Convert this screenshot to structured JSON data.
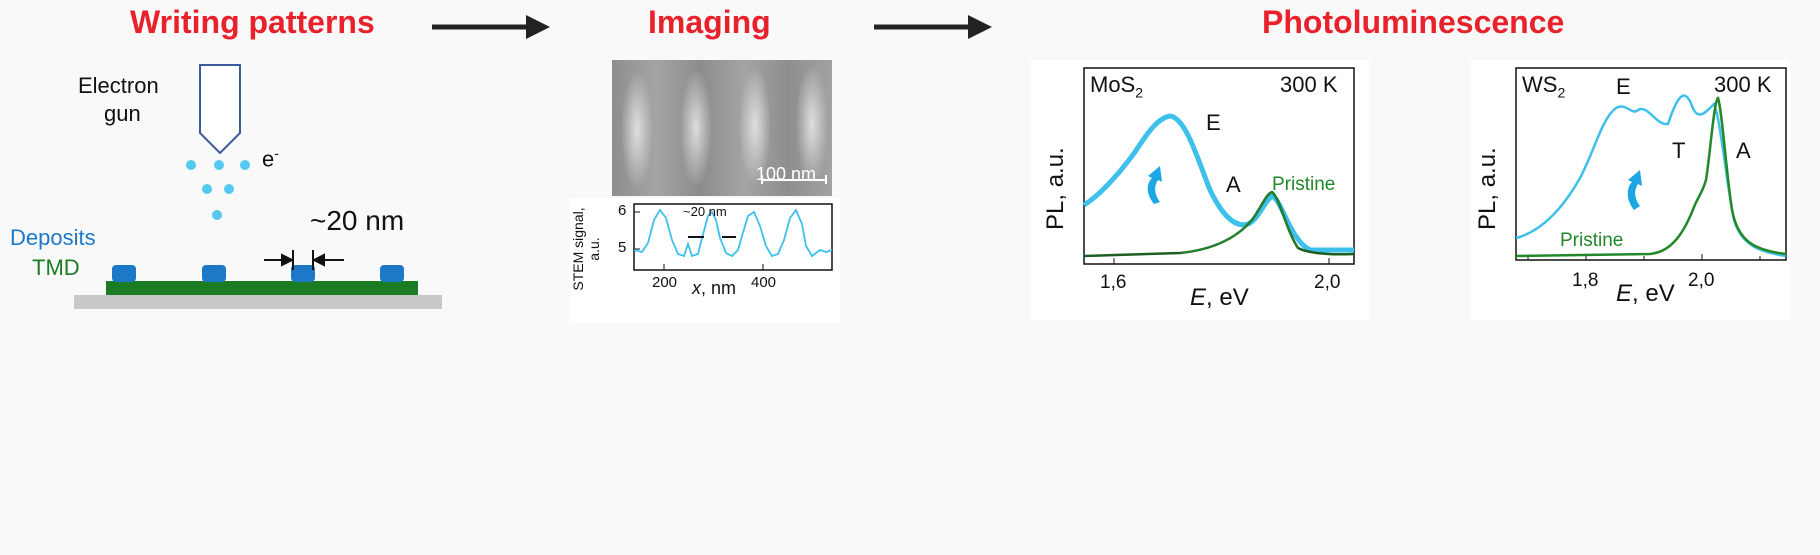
{
  "titles": {
    "writing": "Writing patterns",
    "imaging": "Imaging",
    "pl": "Photoluminescence"
  },
  "writing": {
    "electron_gun_line1": "Electron",
    "electron_gun_line2": "gun",
    "electron_symbol": "e",
    "electron_charge": "-",
    "spacing": "~20 nm",
    "deposits": "Deposits",
    "tmd": "TMD"
  },
  "imaging": {
    "scalebar": "100 nm",
    "spacing": "~20 nm",
    "ylabel_line1": "STEM signal,",
    "ylabel_line2": "a.u.",
    "yticks": [
      "6",
      "5"
    ],
    "xticks": [
      "200",
      "400"
    ],
    "xlabel_var": "x",
    "xlabel_unit": ", nm"
  },
  "mos2": {
    "material": "MoS",
    "subscript": "2",
    "temperature": "300 K",
    "peak_E": "E",
    "peak_A": "A",
    "pristine": "Pristine",
    "ylabel": "PL, a.u.",
    "xlabel_var": "E",
    "xlabel_unit": ", eV",
    "xticks": [
      "1,6",
      "2,0"
    ]
  },
  "ws2": {
    "material": "WS",
    "subscript": "2",
    "temperature": "300 K",
    "peak_E": "E",
    "peak_T": "T",
    "peak_A": "A",
    "pristine": "Pristine",
    "ylabel": "PL, a.u.",
    "xlabel_var": "E",
    "xlabel_unit": ", eV",
    "xticks": [
      "1,8",
      "2,0"
    ]
  },
  "colors": {
    "title_red": "#e8212a",
    "cyan": "#3ec0ec",
    "green": "#22882a",
    "dark_green": "#1c5e22",
    "deposit_blue": "#1d78c8",
    "gun_blue": "#3a5a9c"
  }
}
